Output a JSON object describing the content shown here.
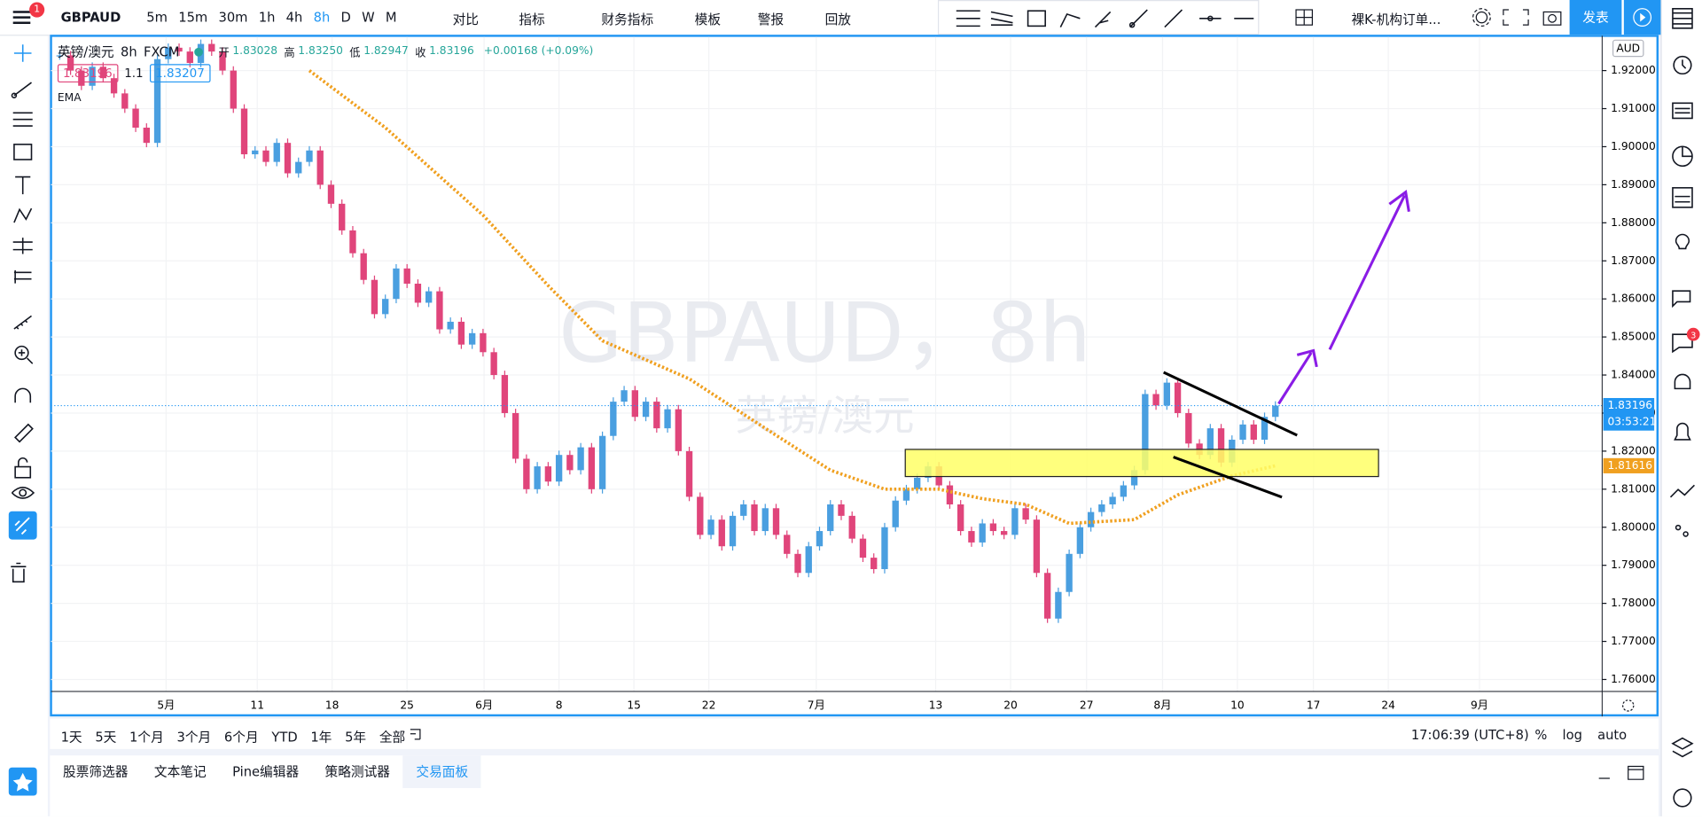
{
  "toolbar": {
    "symbol": "GBPAUD",
    "notification": "1",
    "intervals": [
      "5m",
      "15m",
      "30m",
      "1h",
      "4h",
      "8h",
      "D",
      "W",
      "M"
    ],
    "buttons": [
      "对比",
      "指标",
      "财务指标",
      "模板",
      "警报",
      "回放"
    ],
    "layout": "裸K-机构订单...",
    "publish": "发表"
  },
  "legend": {
    "name": "英镑/澳元",
    "interval": "8h",
    "source": "FXCM",
    "ohlc": [
      {
        "label": "开",
        "value": "1.83028"
      },
      {
        "label": "高",
        "value": "1.83250"
      },
      {
        "label": "低",
        "value": "1.82947"
      },
      {
        "label": "收",
        "value": "1.83196"
      }
    ],
    "change": "+0.00168 (+0.09%)",
    "bid": "1.83196",
    "spread": "1.1",
    "ask": "1.83207",
    "indicator": "EMA"
  },
  "watermark": {
    "title": "GBPAUD，8h",
    "subtitle": "英镑/澳元"
  },
  "price_axis": {
    "currency": "AUD",
    "ylim": [
      1.75685,
      1.92913
    ],
    "yticks": [
      {
        "value": 1.76,
        "label": "1.76000"
      },
      {
        "value": 1.77,
        "label": "1.77000"
      },
      {
        "value": 1.78,
        "label": "1.78000"
      },
      {
        "value": 1.79,
        "label": "1.79000"
      },
      {
        "value": 1.8,
        "label": "1.80000"
      },
      {
        "value": 1.81,
        "label": "1.81000"
      },
      {
        "value": 1.82,
        "label": "1.82000"
      },
      {
        "value": 1.83,
        "label": "1.83000"
      },
      {
        "value": 1.84,
        "label": "1.84000"
      },
      {
        "value": 1.85,
        "label": "1.85000"
      },
      {
        "value": 1.86,
        "label": "1.86000"
      },
      {
        "value": 1.87,
        "label": "1.87000"
      },
      {
        "value": 1.88,
        "label": "1.88000"
      },
      {
        "value": 1.89,
        "label": "1.89000"
      },
      {
        "value": 1.9,
        "label": "1.90000"
      },
      {
        "value": 1.91,
        "label": "1.91000"
      },
      {
        "value": 1.92,
        "label": "1.92000"
      }
    ],
    "last_price": 1.83196,
    "countdown": "03:53:21",
    "ema_last": 1.81616
  },
  "time_axis": {
    "labels": [
      "5月",
      "11",
      "18",
      "25",
      "6月",
      "8",
      "15",
      "22",
      "7月",
      "13",
      "20",
      "27",
      "8月",
      "10",
      "17",
      "24",
      "9月"
    ]
  },
  "candles": {
    "up_color": "#4a9fe0",
    "down_color": "#e0457b",
    "close": [
      1.924,
      1.92,
      1.916,
      1.921,
      1.918,
      1.914,
      1.91,
      1.905,
      1.901,
      1.923,
      1.926,
      1.925,
      1.922,
      1.927,
      1.925,
      1.92,
      1.91,
      1.898,
      1.899,
      1.896,
      1.901,
      1.893,
      1.896,
      1.899,
      1.89,
      1.885,
      1.878,
      1.872,
      1.865,
      1.856,
      1.86,
      1.868,
      1.864,
      1.859,
      1.862,
      1.852,
      1.854,
      1.848,
      1.851,
      1.846,
      1.84,
      1.83,
      1.818,
      1.81,
      1.816,
      1.812,
      1.819,
      1.815,
      1.821,
      1.81,
      1.824,
      1.833,
      1.836,
      1.829,
      1.833,
      1.826,
      1.831,
      1.82,
      1.808,
      1.798,
      1.802,
      1.795,
      1.803,
      1.806,
      1.799,
      1.805,
      1.798,
      1.793,
      1.788,
      1.795,
      1.799,
      1.806,
      1.803,
      1.797,
      1.792,
      1.789,
      1.8,
      1.807,
      1.81,
      1.813,
      1.816,
      1.811,
      1.806,
      1.799,
      1.796,
      1.801,
      1.799,
      1.798,
      1.805,
      1.802,
      1.788,
      1.776,
      1.783,
      1.793,
      1.8,
      1.804,
      1.806,
      1.808,
      1.811,
      1.815,
      1.835,
      1.832,
      1.838,
      1.83,
      1.822,
      1.819,
      1.826,
      1.817,
      1.823,
      1.827,
      1.823,
      1.829,
      1.83196
    ]
  },
  "ema": {
    "color": "#f0a020",
    "index": [
      23,
      30,
      39,
      45,
      50,
      58,
      65,
      71,
      76,
      81,
      85,
      89,
      93,
      99,
      103,
      108,
      112
    ],
    "values": [
      1.92,
      1.905,
      1.882,
      1.8635,
      1.849,
      1.839,
      1.826,
      1.815,
      1.81,
      1.81,
      1.8075,
      1.806,
      1.801,
      1.802,
      1.8085,
      1.8135,
      1.81616
    ]
  },
  "bottom_bar": {
    "ranges": [
      "1天",
      "5天",
      "1个月",
      "3个月",
      "6个月",
      "YTD",
      "1年",
      "5年",
      "全部"
    ],
    "clock": "17:06:39 (UTC+8)",
    "scale_options": [
      "%",
      "log",
      "auto"
    ]
  },
  "panel_tabs": [
    "股票筛选器",
    "文本笔记",
    "Pine编辑器",
    "策略测试器",
    "交易面板"
  ],
  "right_badge": "3"
}
